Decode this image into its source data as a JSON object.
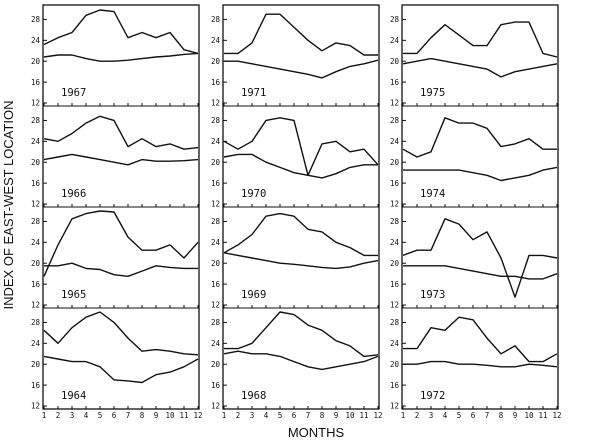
{
  "chart_data": {
    "type": "line",
    "ylabel": "INDEX OF EAST-WEST LOCATION",
    "xlabel": "MONTHS",
    "x": [
      1,
      2,
      3,
      4,
      5,
      6,
      7,
      8,
      9,
      10,
      11,
      12
    ],
    "ylim": [
      12,
      30
    ],
    "yticks": [
      12,
      16,
      20,
      24,
      28
    ],
    "columns": [
      [
        {
          "year": "1967",
          "series": [
            {
              "values": [
                23.2,
                24.5,
                25.5,
                28.8,
                29.8,
                29.5,
                24.5,
                25.5,
                24.5,
                25.5,
                22.2,
                21.5
              ]
            },
            {
              "values": [
                20.8,
                21.2,
                21.2,
                20.5,
                20.0,
                20.0,
                20.2,
                20.5,
                20.8,
                21.0,
                21.3,
                21.5
              ]
            }
          ]
        },
        {
          "year": "1966",
          "series": [
            {
              "values": [
                24.5,
                24.0,
                25.5,
                27.5,
                28.8,
                28.0,
                23.0,
                24.5,
                23.0,
                23.5,
                22.5,
                22.8
              ]
            },
            {
              "values": [
                20.5,
                21.0,
                21.5,
                21.0,
                20.5,
                20.0,
                19.5,
                20.5,
                20.2,
                20.2,
                20.3,
                20.5
              ]
            }
          ]
        },
        {
          "year": "1965",
          "series": [
            {
              "values": [
                17.5,
                23.5,
                28.5,
                29.5,
                30.0,
                29.8,
                25.0,
                22.5,
                22.5,
                23.5,
                21.0,
                24.0
              ]
            },
            {
              "values": [
                19.5,
                19.5,
                20.0,
                19.0,
                18.8,
                17.8,
                17.5,
                18.5,
                19.5,
                19.2,
                19.0,
                19.0
              ]
            }
          ]
        },
        {
          "year": "1964",
          "series": [
            {
              "values": [
                26.5,
                24.0,
                27.0,
                29.0,
                30.0,
                28.0,
                25.0,
                22.5,
                22.8,
                22.5,
                22.0,
                21.8
              ]
            },
            {
              "values": [
                21.5,
                21.0,
                20.5,
                20.5,
                19.5,
                17.0,
                16.8,
                16.5,
                18.0,
                18.5,
                19.5,
                21.0
              ]
            }
          ]
        }
      ],
      [
        {
          "year": "1971",
          "series": [
            {
              "values": [
                21.5,
                21.5,
                23.5,
                29.0,
                29.0,
                26.5,
                24.0,
                22.0,
                23.5,
                23.0,
                21.2,
                21.2
              ]
            },
            {
              "values": [
                20.0,
                20.0,
                19.5,
                19.0,
                18.5,
                18.0,
                17.5,
                16.8,
                18.0,
                19.0,
                19.5,
                20.2
              ]
            }
          ]
        },
        {
          "year": "1970",
          "series": [
            {
              "values": [
                24.0,
                22.5,
                24.0,
                28.0,
                28.5,
                28.0,
                17.5,
                23.5,
                24.0,
                22.0,
                22.5,
                19.5
              ]
            },
            {
              "values": [
                21.0,
                21.5,
                21.5,
                20.0,
                19.0,
                18.0,
                17.5,
                17.0,
                17.8,
                19.0,
                19.5,
                19.5
              ]
            }
          ]
        },
        {
          "year": "1969",
          "series": [
            {
              "values": [
                22.0,
                23.5,
                25.5,
                29.0,
                29.5,
                29.0,
                26.5,
                26.0,
                24.0,
                23.0,
                21.5,
                21.5
              ]
            },
            {
              "values": [
                22.0,
                21.5,
                21.0,
                20.5,
                20.0,
                19.8,
                19.5,
                19.2,
                19.0,
                19.3,
                20.0,
                20.5
              ]
            }
          ]
        },
        {
          "year": "1968",
          "series": [
            {
              "values": [
                23.0,
                23.0,
                24.0,
                27.0,
                30.0,
                29.5,
                27.5,
                26.5,
                24.5,
                23.5,
                21.5,
                21.8
              ]
            },
            {
              "values": [
                22.0,
                22.5,
                22.0,
                22.0,
                21.5,
                20.5,
                19.5,
                19.0,
                19.5,
                20.0,
                20.5,
                21.5
              ]
            }
          ]
        }
      ],
      [
        {
          "year": "1975",
          "series": [
            {
              "values": [
                21.5,
                21.5,
                24.5,
                27.0,
                25.0,
                23.0,
                23.0,
                27.0,
                27.5,
                27.5,
                21.5,
                20.8
              ]
            },
            {
              "values": [
                19.5,
                20.0,
                20.5,
                20.0,
                19.5,
                19.0,
                18.5,
                17.0,
                18.0,
                18.5,
                19.0,
                19.5
              ]
            }
          ]
        },
        {
          "year": "1974",
          "series": [
            {
              "values": [
                22.5,
                21.0,
                22.0,
                28.5,
                27.5,
                27.5,
                26.5,
                23.0,
                23.5,
                24.5,
                22.5,
                22.5
              ]
            },
            {
              "values": [
                18.5,
                18.5,
                18.5,
                18.5,
                18.5,
                18.0,
                17.5,
                16.5,
                17.0,
                17.5,
                18.5,
                19.0
              ]
            }
          ]
        },
        {
          "year": "1973",
          "series": [
            {
              "values": [
                21.5,
                22.5,
                22.5,
                28.5,
                27.5,
                24.5,
                26.0,
                21.0,
                13.5,
                21.5,
                21.5,
                21.0
              ]
            },
            {
              "values": [
                19.5,
                19.5,
                19.5,
                19.5,
                19.0,
                18.5,
                18.0,
                17.5,
                17.5,
                17.0,
                17.0,
                18.0
              ]
            }
          ]
        },
        {
          "year": "1972",
          "series": [
            {
              "values": [
                23.0,
                23.0,
                27.0,
                26.5,
                29.0,
                28.5,
                25.0,
                22.0,
                23.5,
                20.5,
                20.5,
                22.0
              ]
            },
            {
              "values": [
                20.0,
                20.0,
                20.5,
                20.5,
                20.0,
                20.0,
                19.8,
                19.5,
                19.5,
                20.0,
                19.8,
                19.5
              ]
            }
          ]
        }
      ]
    ]
  }
}
